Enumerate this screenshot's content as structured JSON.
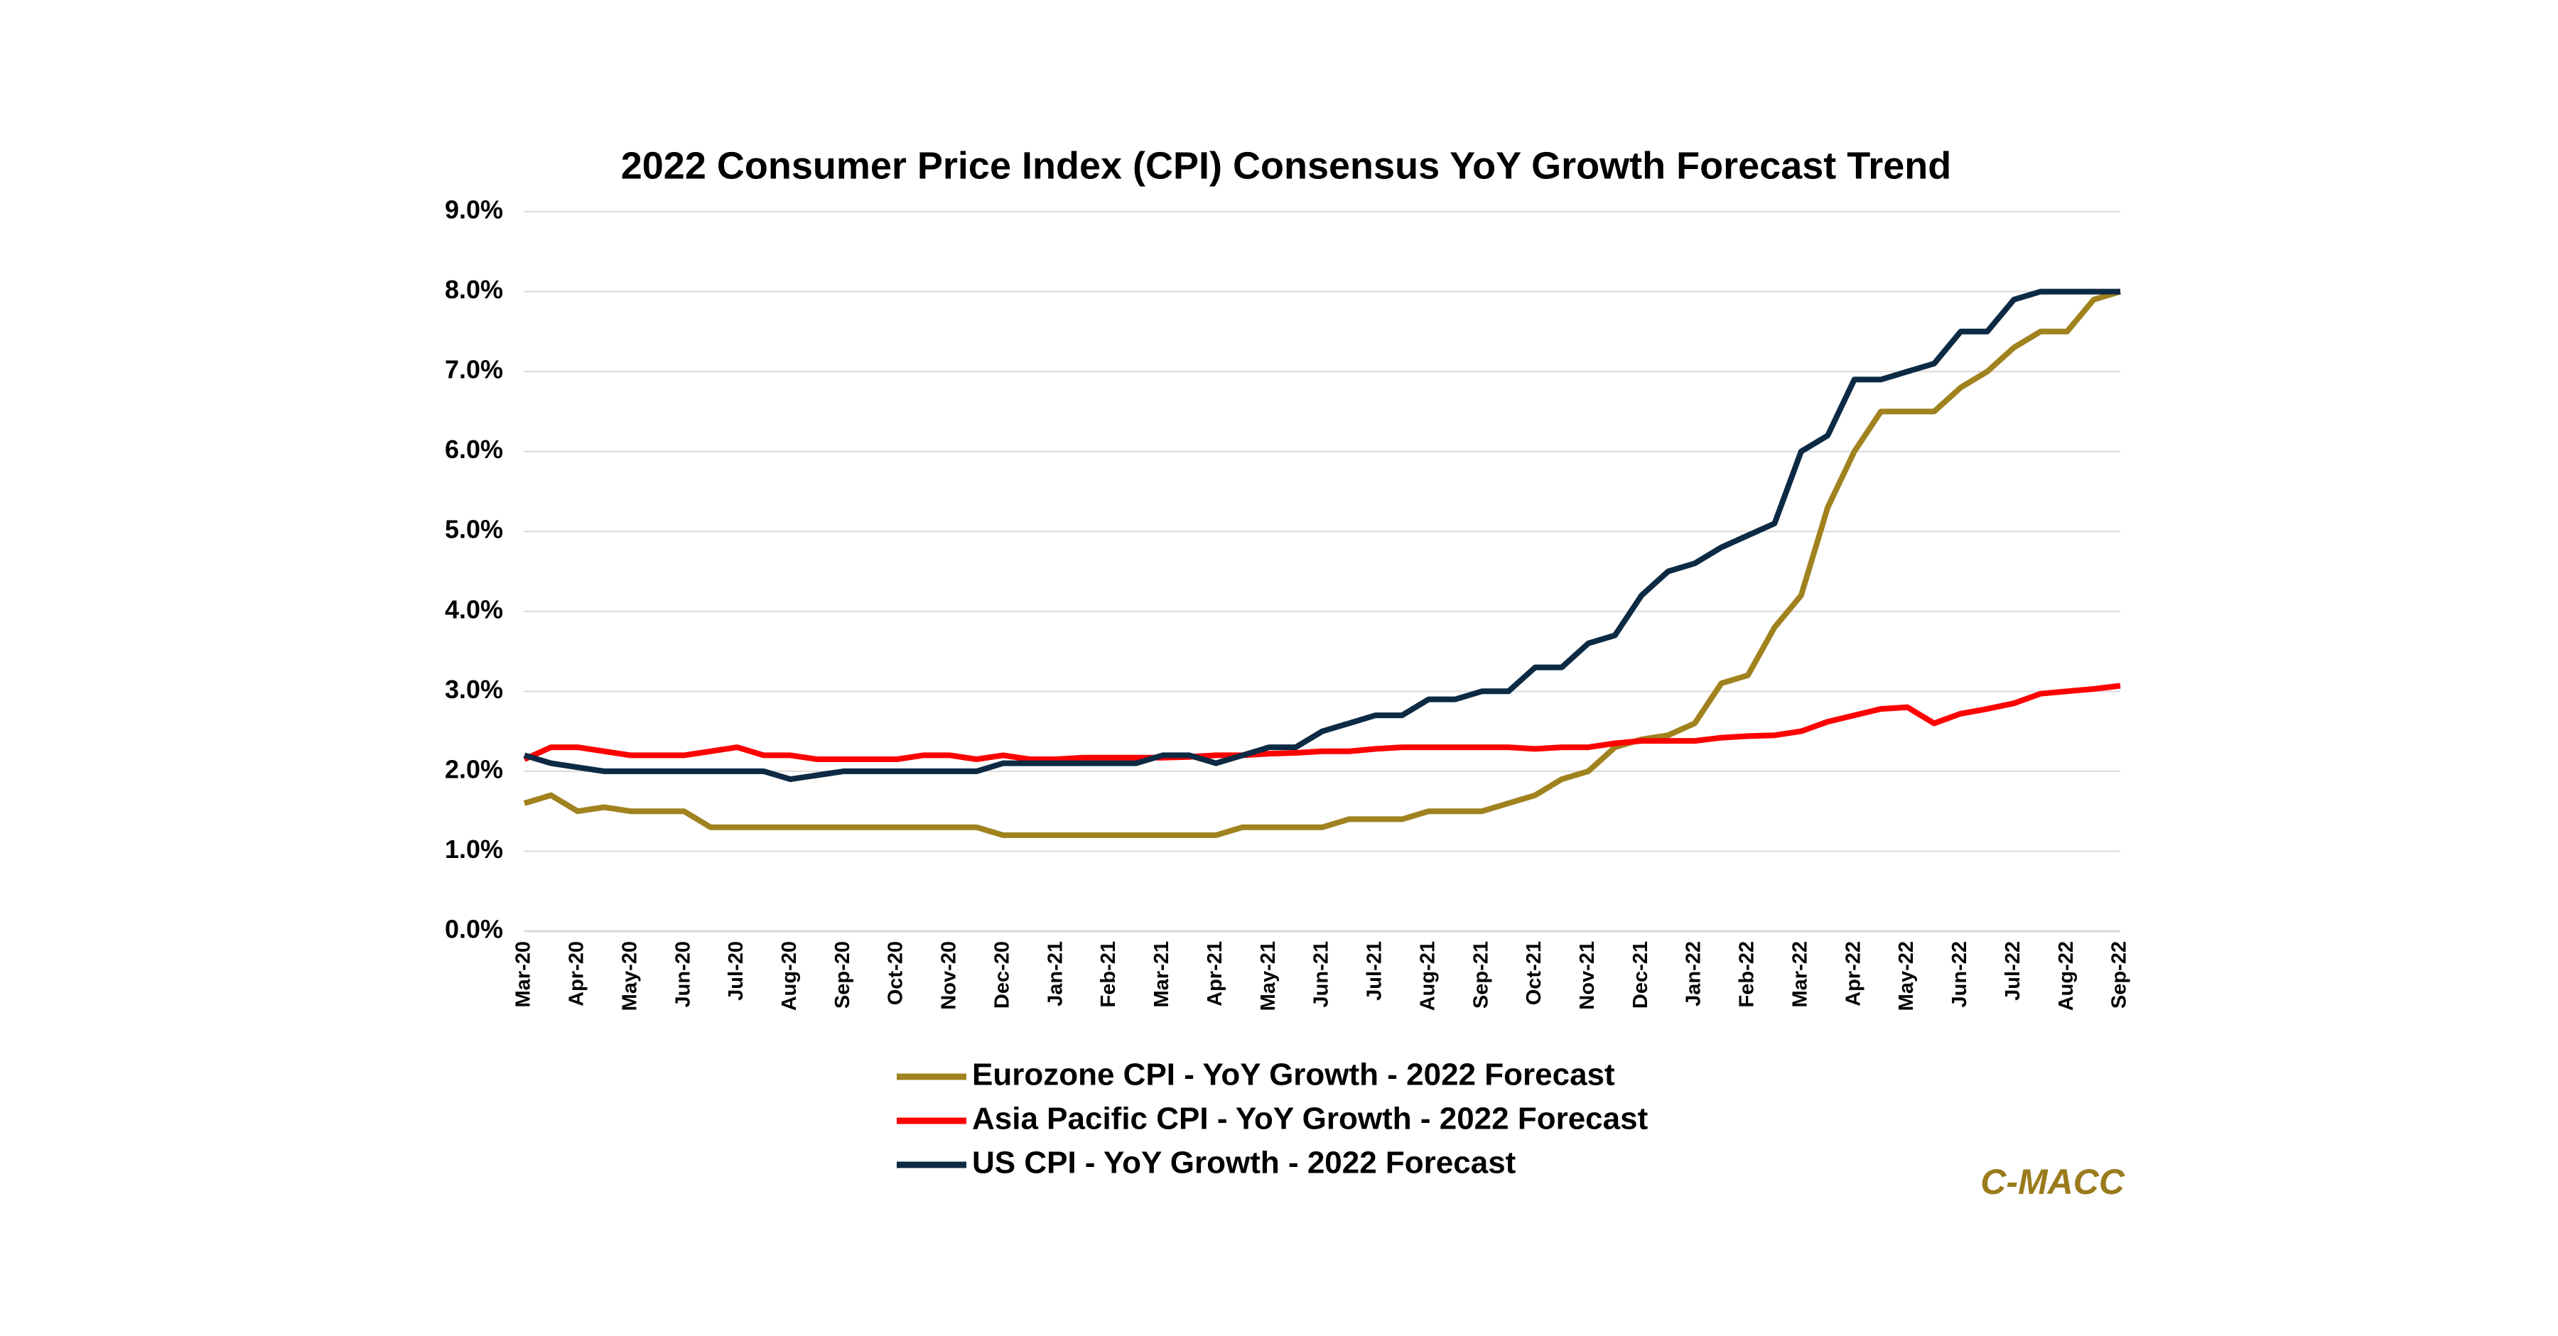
{
  "chart_data": {
    "type": "line",
    "title": "2022 Consumer Price Index (CPI) Consensus YoY Growth Forecast Trend",
    "categories": [
      "Mar-20",
      null,
      "Apr-20",
      null,
      "May-20",
      null,
      "Jun-20",
      null,
      "Jul-20",
      null,
      "Aug-20",
      null,
      "Sep-20",
      null,
      "Oct-20",
      null,
      "Nov-20",
      null,
      "Dec-20",
      null,
      "Jan-21",
      null,
      "Feb-21",
      null,
      "Mar-21",
      null,
      "Apr-21",
      null,
      "May-21",
      null,
      "Jun-21",
      null,
      "Jul-21",
      null,
      "Aug-21",
      null,
      "Sep-21",
      null,
      "Oct-21",
      null,
      "Nov-21",
      null,
      "Dec-21",
      null,
      "Jan-22",
      null,
      "Feb-22",
      null,
      "Mar-22",
      null,
      "Apr-22",
      null,
      "May-22",
      null,
      "Jun-22",
      null,
      "Jul-22",
      null,
      "Aug-22",
      null,
      "Sep-22"
    ],
    "series": [
      {
        "name": "Eurozone CPI - YoY Growth - 2022 Forecast",
        "color": "#a0821e",
        "values": [
          1.6,
          1.7,
          1.5,
          1.55,
          1.5,
          1.5,
          1.5,
          1.3,
          1.3,
          1.3,
          1.3,
          1.3,
          1.3,
          1.3,
          1.3,
          1.3,
          1.3,
          1.3,
          1.2,
          1.2,
          1.2,
          1.2,
          1.2,
          1.2,
          1.2,
          1.2,
          1.2,
          1.3,
          1.3,
          1.3,
          1.3,
          1.4,
          1.4,
          1.4,
          1.5,
          1.5,
          1.5,
          1.6,
          1.7,
          1.9,
          2.0,
          2.3,
          2.4,
          2.45,
          2.6,
          3.1,
          3.2,
          3.8,
          4.2,
          5.3,
          6.0,
          6.5,
          6.5,
          6.5,
          6.8,
          7.0,
          7.3,
          7.5,
          7.5,
          7.9,
          8.0
        ]
      },
      {
        "name": "Asia Pacific CPI - YoY Growth - 2022 Forecast",
        "color": "#ff0000",
        "values": [
          2.15,
          2.3,
          2.3,
          2.25,
          2.2,
          2.2,
          2.2,
          2.25,
          2.3,
          2.2,
          2.2,
          2.15,
          2.15,
          2.15,
          2.15,
          2.2,
          2.2,
          2.15,
          2.2,
          2.15,
          2.15,
          2.17,
          2.17,
          2.17,
          2.17,
          2.18,
          2.2,
          2.2,
          2.22,
          2.23,
          2.25,
          2.25,
          2.28,
          2.3,
          2.3,
          2.3,
          2.3,
          2.3,
          2.28,
          2.3,
          2.3,
          2.35,
          2.38,
          2.38,
          2.38,
          2.42,
          2.44,
          2.45,
          2.5,
          2.62,
          2.7,
          2.78,
          2.8,
          2.6,
          2.72,
          2.78,
          2.85,
          2.97,
          3.0,
          3.03,
          3.07
        ]
      },
      {
        "name": "US CPI - YoY Growth - 2022 Forecast",
        "color": "#0d2a44",
        "values": [
          2.2,
          2.1,
          2.05,
          2.0,
          2.0,
          2.0,
          2.0,
          2.0,
          2.0,
          2.0,
          1.9,
          1.95,
          2.0,
          2.0,
          2.0,
          2.0,
          2.0,
          2.0,
          2.1,
          2.1,
          2.1,
          2.1,
          2.1,
          2.1,
          2.2,
          2.2,
          2.1,
          2.2,
          2.3,
          2.3,
          2.5,
          2.6,
          2.7,
          2.7,
          2.9,
          2.9,
          3.0,
          3.0,
          3.3,
          3.3,
          3.6,
          3.7,
          4.2,
          4.5,
          4.6,
          4.8,
          4.95,
          5.1,
          6.0,
          6.2,
          6.9,
          6.9,
          7.0,
          7.1,
          7.5,
          7.5,
          7.9,
          8.0,
          8.0,
          8.0,
          8.0
        ]
      }
    ],
    "ylim": [
      0,
      9
    ],
    "yticks": [
      {
        "value": 0,
        "label": "0.0%"
      },
      {
        "value": 1,
        "label": "1.0%"
      },
      {
        "value": 2,
        "label": "2.0%"
      },
      {
        "value": 3,
        "label": "3.0%"
      },
      {
        "value": 4,
        "label": "4.0%"
      },
      {
        "value": 5,
        "label": "5.0%"
      },
      {
        "value": 6,
        "label": "6.0%"
      },
      {
        "value": 7,
        "label": "7.0%"
      },
      {
        "value": 8,
        "label": "8.0%"
      },
      {
        "value": 9,
        "label": "9.0%"
      }
    ],
    "grid": true,
    "legend": "bottom",
    "annotations": [
      {
        "text": "C-MACC",
        "color": "#9a7b1c"
      }
    ]
  }
}
